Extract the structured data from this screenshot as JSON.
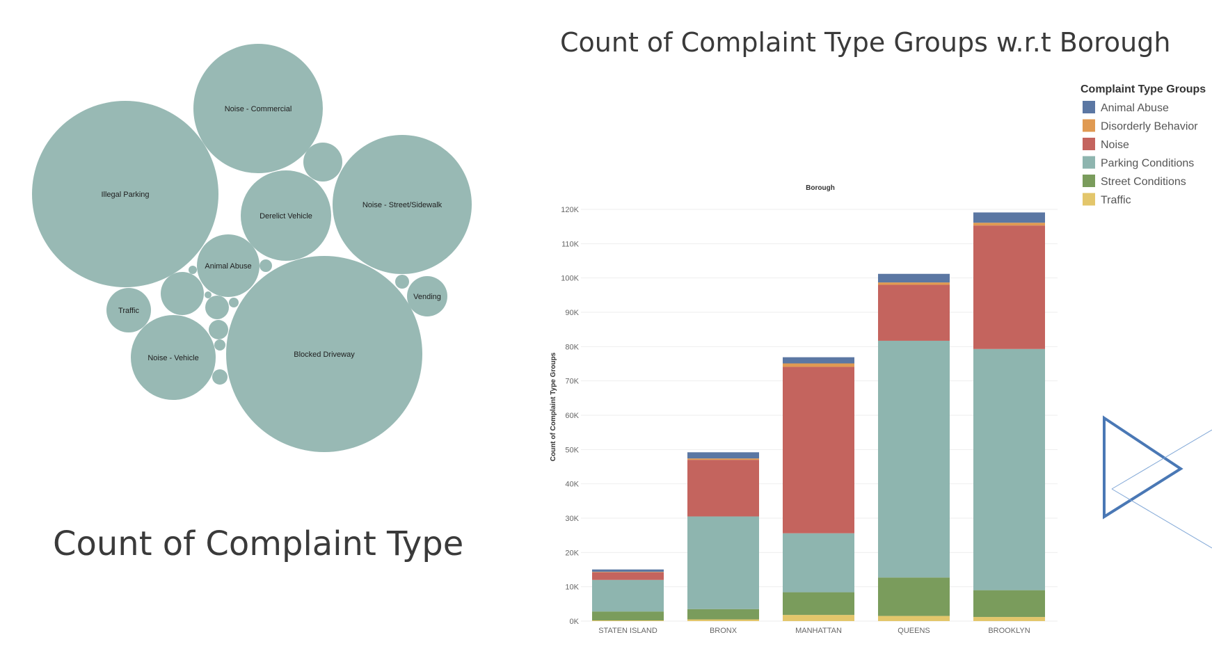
{
  "page": {
    "left_title": "Count of Complaint Type",
    "right_title": "Count of Complaint Type Groups w.r.t Borough"
  },
  "chart_data": [
    {
      "type": "bubble",
      "title": "Count of Complaint Type",
      "color": "#98B9B4",
      "bubbles": [
        {
          "label": "Illegal Parking"
        },
        {
          "label": "Noise - Commercial"
        },
        {
          "label": "Derelict Vehicle"
        },
        {
          "label": "Noise - Street/Sidewalk"
        },
        {
          "label": "Animal Abuse"
        },
        {
          "label": "Traffic"
        },
        {
          "label": "Vending"
        },
        {
          "label": "Noise - Vehicle"
        },
        {
          "label": "Blocked Driveway"
        },
        {
          "label": ""
        },
        {
          "label": ""
        },
        {
          "label": ""
        },
        {
          "label": ""
        },
        {
          "label": ""
        },
        {
          "label": ""
        },
        {
          "label": ""
        },
        {
          "label": ""
        },
        {
          "label": ""
        },
        {
          "label": ""
        },
        {
          "label": ""
        },
        {
          "label": ""
        }
      ]
    },
    {
      "type": "bar",
      "stacked": true,
      "title": "Count of Complaint Type Groups w.r.t Borough",
      "column_header": "Borough",
      "ylabel": "Count of Complaint Type Groups",
      "ylim": [
        0,
        120000
      ],
      "yticks": [
        {
          "value": 0,
          "label": "0K"
        },
        {
          "value": 10000,
          "label": "10K"
        },
        {
          "value": 20000,
          "label": "20K"
        },
        {
          "value": 30000,
          "label": "30K"
        },
        {
          "value": 40000,
          "label": "40K"
        },
        {
          "value": 50000,
          "label": "50K"
        },
        {
          "value": 60000,
          "label": "60K"
        },
        {
          "value": 70000,
          "label": "70K"
        },
        {
          "value": 80000,
          "label": "80K"
        },
        {
          "value": 90000,
          "label": "90K"
        },
        {
          "value": 100000,
          "label": "100K"
        },
        {
          "value": 110000,
          "label": "110K"
        },
        {
          "value": 120000,
          "label": "120K"
        }
      ],
      "categories": [
        "STATEN ISLAND",
        "BRONX",
        "MANHATTAN",
        "QUEENS",
        "BROOKLYN"
      ],
      "legend_title": "Complaint Type Groups",
      "legend_position": "top-right",
      "series": [
        {
          "name": "Traffic",
          "color": "#E3C66B",
          "values": [
            200,
            500,
            1800,
            1500,
            1200
          ]
        },
        {
          "name": "Street Conditions",
          "color": "#7A9C5C",
          "values": [
            2600,
            3000,
            6600,
            11200,
            7800
          ]
        },
        {
          "name": "Parking Conditions",
          "color": "#8EB5AF",
          "values": [
            9200,
            27000,
            17200,
            69000,
            70300
          ]
        },
        {
          "name": "Noise",
          "color": "#C4645E",
          "values": [
            2200,
            16500,
            48500,
            16300,
            36000
          ]
        },
        {
          "name": "Disorderly Behavior",
          "color": "#E09A52",
          "values": [
            150,
            400,
            1000,
            700,
            800
          ]
        },
        {
          "name": "Animal Abuse",
          "color": "#5B77A3",
          "values": [
            700,
            1800,
            1800,
            2500,
            3000
          ]
        }
      ],
      "legend_order": [
        "Animal Abuse",
        "Disorderly Behavior",
        "Noise",
        "Parking Conditions",
        "Street Conditions",
        "Traffic"
      ]
    }
  ]
}
